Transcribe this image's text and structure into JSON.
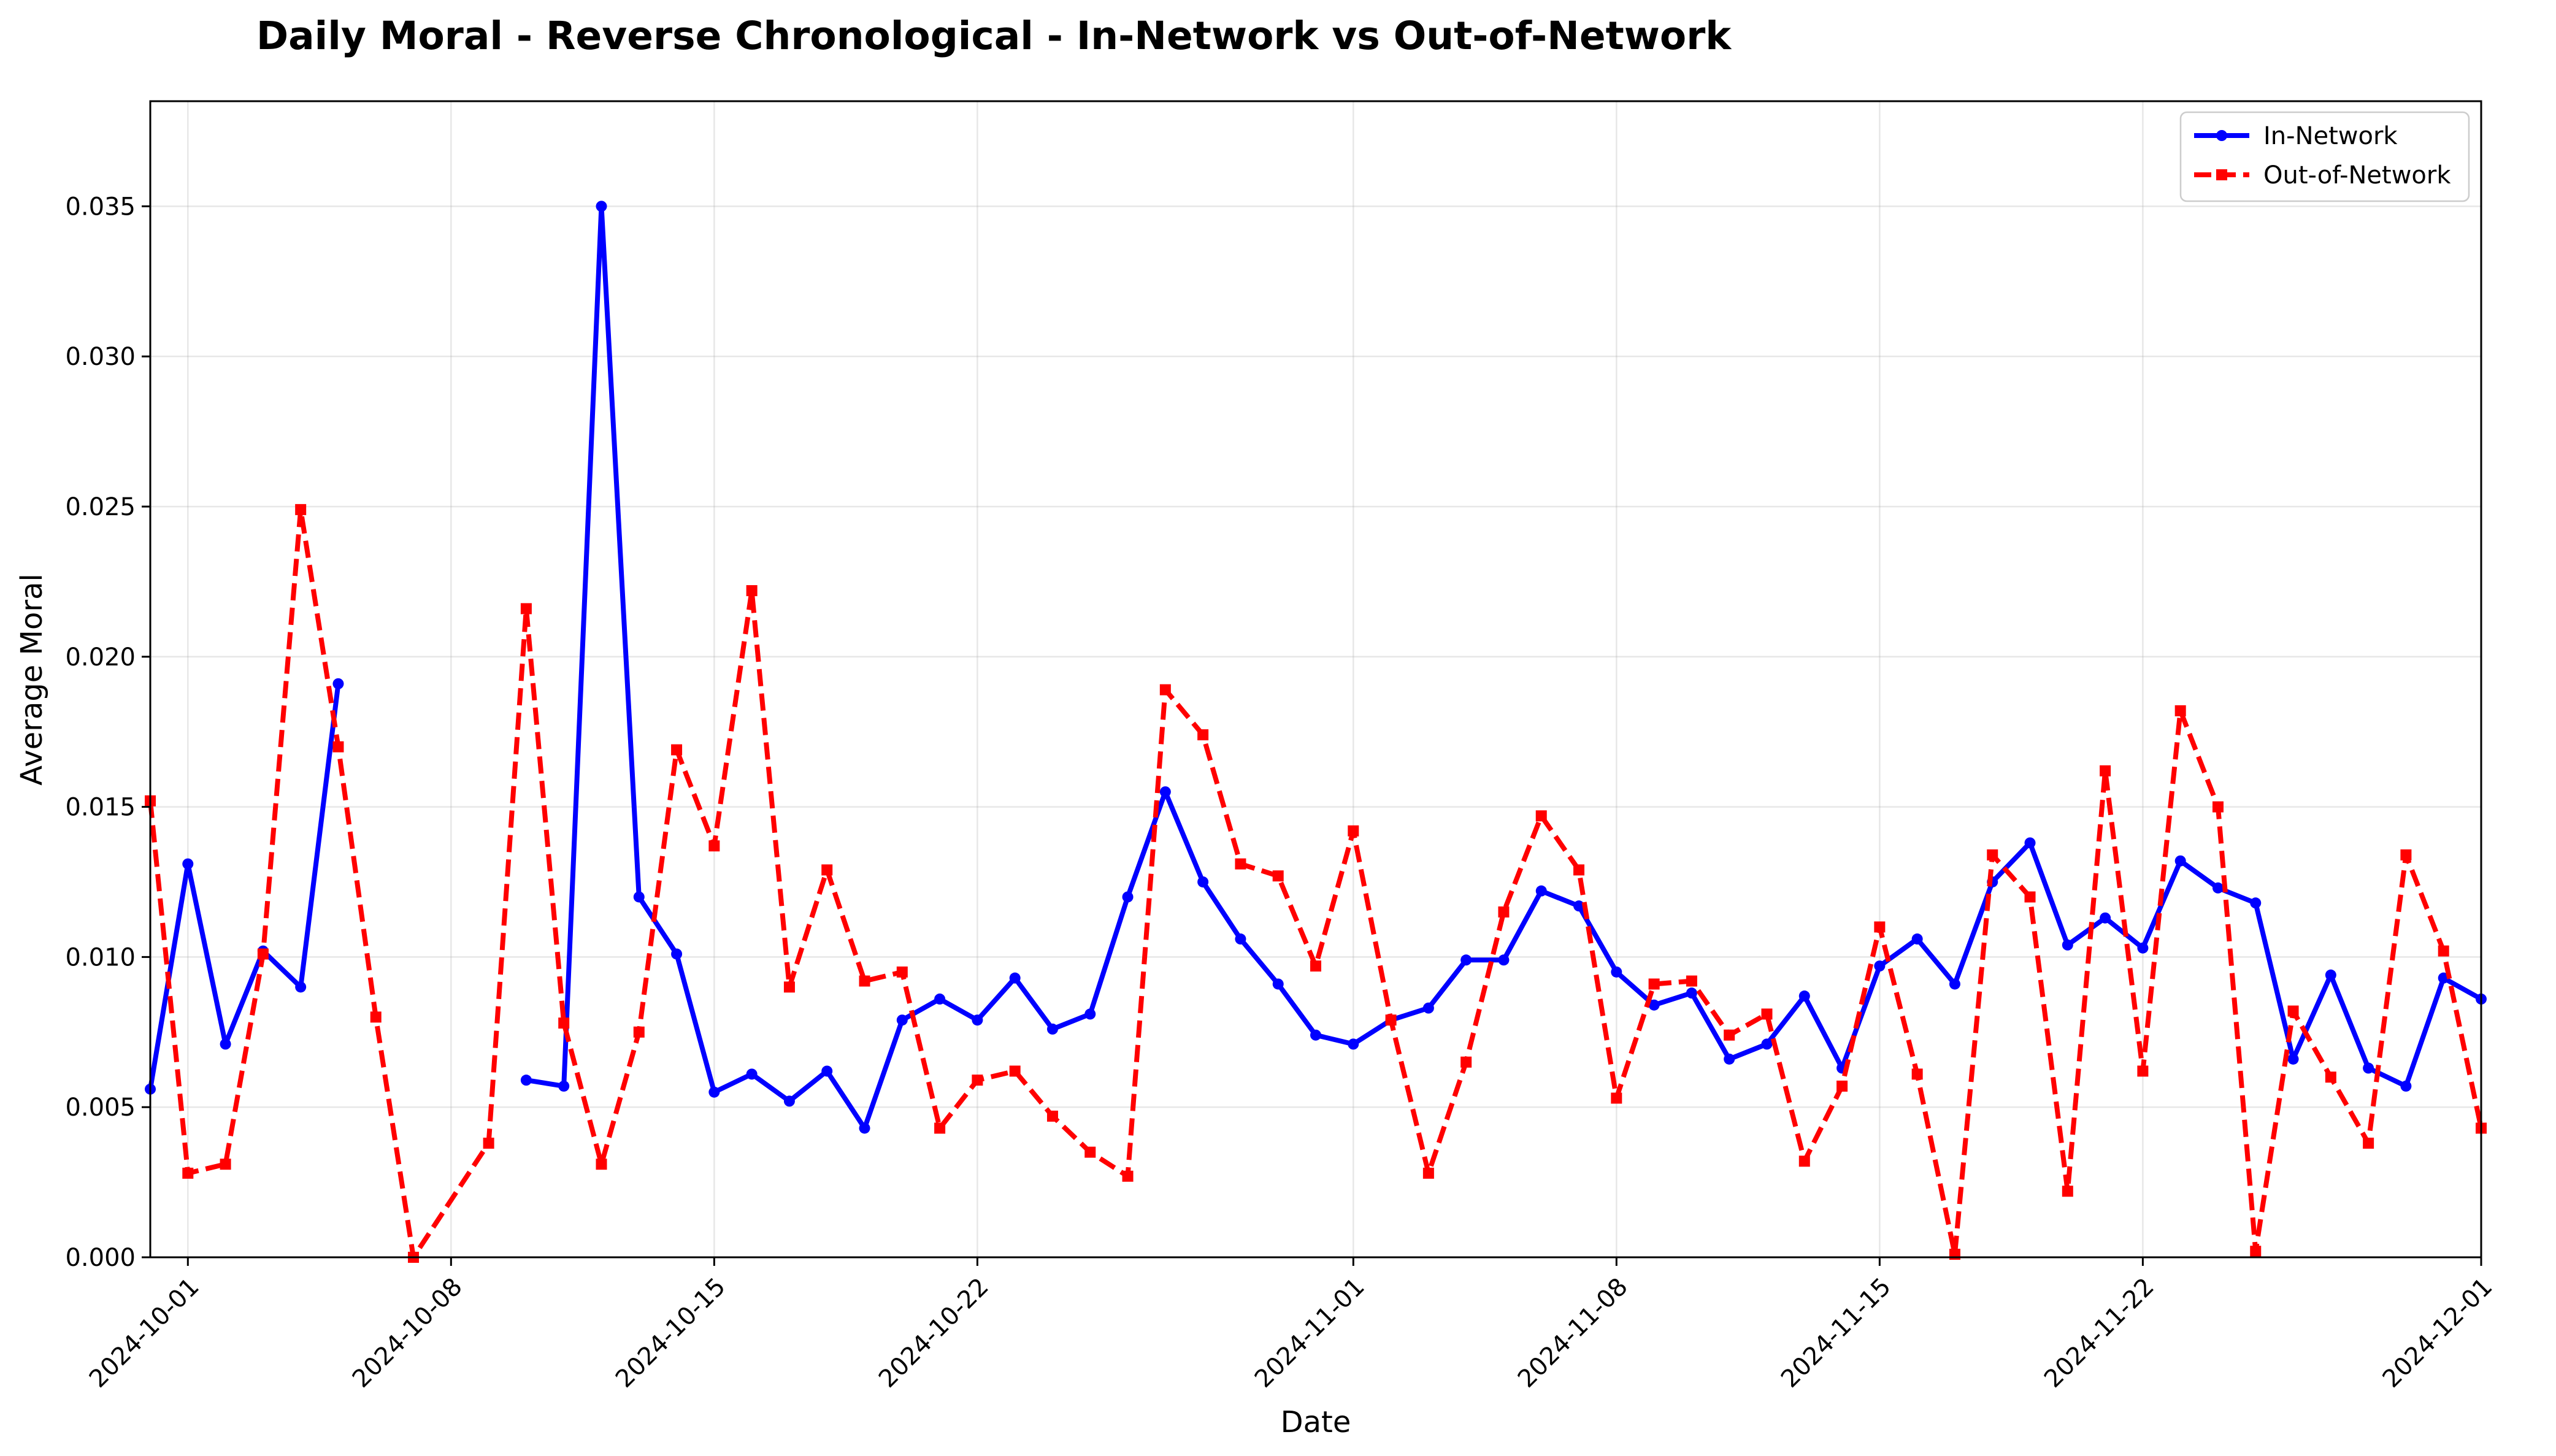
{
  "chart_data": {
    "type": "line",
    "title": "Daily Moral - Reverse Chronological - In-Network vs Out-of-Network",
    "xlabel": "Date",
    "ylabel": "Average Moral",
    "xlim": [
      "2024-09-30",
      "2024-12-01"
    ],
    "ylim": [
      0,
      0.0385
    ],
    "x_ticks": [
      "2024-10-01",
      "2024-10-08",
      "2024-10-15",
      "2024-10-22",
      "2024-11-01",
      "2024-11-08",
      "2024-11-15",
      "2024-11-22",
      "2024-12-01"
    ],
    "y_ticks": [
      "0.000",
      "0.005",
      "0.010",
      "0.015",
      "0.020",
      "0.025",
      "0.030",
      "0.035"
    ],
    "grid": true,
    "legend_position": "top-right",
    "series": [
      {
        "name": "In-Network",
        "color": "#0000ff",
        "style": "solid",
        "marker": "circle",
        "points": [
          [
            "2024-09-30",
            0.0056
          ],
          [
            "2024-10-01",
            0.0131
          ],
          [
            "2024-10-02",
            0.0071
          ],
          [
            "2024-10-03",
            0.0102
          ],
          [
            "2024-10-04",
            0.009
          ],
          [
            "2024-10-05",
            0.0191
          ],
          [
            "2024-10-06",
            null
          ],
          [
            "2024-10-07",
            null
          ],
          [
            "2024-10-08",
            null
          ],
          [
            "2024-10-09",
            null
          ],
          [
            "2024-10-10",
            0.0059
          ],
          [
            "2024-10-11",
            0.0057
          ],
          [
            "2024-10-12",
            0.035
          ],
          [
            "2024-10-13",
            0.012
          ],
          [
            "2024-10-14",
            0.0101
          ],
          [
            "2024-10-15",
            0.0055
          ],
          [
            "2024-10-16",
            0.0061
          ],
          [
            "2024-10-17",
            0.0052
          ],
          [
            "2024-10-18",
            0.0062
          ],
          [
            "2024-10-19",
            0.0043
          ],
          [
            "2024-10-20",
            0.0079
          ],
          [
            "2024-10-21",
            0.0086
          ],
          [
            "2024-10-22",
            0.0079
          ],
          [
            "2024-10-23",
            0.0093
          ],
          [
            "2024-10-24",
            0.0076
          ],
          [
            "2024-10-25",
            0.0081
          ],
          [
            "2024-10-26",
            0.012
          ],
          [
            "2024-10-27",
            0.0155
          ],
          [
            "2024-10-28",
            0.0125
          ],
          [
            "2024-10-29",
            0.0106
          ],
          [
            "2024-10-30",
            0.0091
          ],
          [
            "2024-10-31",
            0.0074
          ],
          [
            "2024-11-01",
            0.0071
          ],
          [
            "2024-11-02",
            0.0079
          ],
          [
            "2024-11-03",
            0.0083
          ],
          [
            "2024-11-04",
            0.0099
          ],
          [
            "2024-11-05",
            0.0099
          ],
          [
            "2024-11-06",
            0.0122
          ],
          [
            "2024-11-07",
            0.0117
          ],
          [
            "2024-11-08",
            0.0095
          ],
          [
            "2024-11-09",
            0.0084
          ],
          [
            "2024-11-10",
            0.0088
          ],
          [
            "2024-11-11",
            0.0066
          ],
          [
            "2024-11-12",
            0.0071
          ],
          [
            "2024-11-13",
            0.0087
          ],
          [
            "2024-11-14",
            0.0063
          ],
          [
            "2024-11-15",
            0.0097
          ],
          [
            "2024-11-16",
            0.0106
          ],
          [
            "2024-11-17",
            0.0091
          ],
          [
            "2024-11-18",
            0.0125
          ],
          [
            "2024-11-19",
            0.0138
          ],
          [
            "2024-11-20",
            0.0104
          ],
          [
            "2024-11-21",
            0.0113
          ],
          [
            "2024-11-22",
            0.0103
          ],
          [
            "2024-11-23",
            0.0132
          ],
          [
            "2024-11-24",
            0.0123
          ],
          [
            "2024-11-25",
            0.0118
          ],
          [
            "2024-11-26",
            0.0066
          ],
          [
            "2024-11-27",
            0.0094
          ],
          [
            "2024-11-28",
            0.0063
          ],
          [
            "2024-11-29",
            0.0057
          ],
          [
            "2024-11-30",
            0.0093
          ],
          [
            "2024-12-01",
            0.0086
          ]
        ]
      },
      {
        "name": "Out-of-Network",
        "color": "#ff0000",
        "style": "dashed",
        "marker": "square",
        "points": [
          [
            "2024-09-30",
            0.0152
          ],
          [
            "2024-10-01",
            0.0028
          ],
          [
            "2024-10-02",
            0.0031
          ],
          [
            "2024-10-03",
            0.0101
          ],
          [
            "2024-10-04",
            0.0249
          ],
          [
            "2024-10-05",
            0.017
          ],
          [
            "2024-10-06",
            0.008
          ],
          [
            "2024-10-07",
            0.0
          ],
          [
            "2024-10-09",
            0.0038
          ],
          [
            "2024-10-10",
            0.0216
          ],
          [
            "2024-10-11",
            0.0078
          ],
          [
            "2024-10-12",
            0.0031
          ],
          [
            "2024-10-13",
            0.0075
          ],
          [
            "2024-10-14",
            0.0169
          ],
          [
            "2024-10-15",
            0.0137
          ],
          [
            "2024-10-16",
            0.0222
          ],
          [
            "2024-10-17",
            0.009
          ],
          [
            "2024-10-18",
            0.0129
          ],
          [
            "2024-10-19",
            0.0092
          ],
          [
            "2024-10-20",
            0.0095
          ],
          [
            "2024-10-21",
            0.0043
          ],
          [
            "2024-10-22",
            0.0059
          ],
          [
            "2024-10-23",
            0.0062
          ],
          [
            "2024-10-24",
            0.0047
          ],
          [
            "2024-10-25",
            0.0035
          ],
          [
            "2024-10-26",
            0.0027
          ],
          [
            "2024-10-27",
            0.0189
          ],
          [
            "2024-10-28",
            0.0174
          ],
          [
            "2024-10-29",
            0.0131
          ],
          [
            "2024-10-30",
            0.0127
          ],
          [
            "2024-10-31",
            0.0097
          ],
          [
            "2024-11-01",
            0.0142
          ],
          [
            "2024-11-02",
            0.0079
          ],
          [
            "2024-11-03",
            0.0028
          ],
          [
            "2024-11-04",
            0.0065
          ],
          [
            "2024-11-05",
            0.0115
          ],
          [
            "2024-11-06",
            0.0147
          ],
          [
            "2024-11-07",
            0.0129
          ],
          [
            "2024-11-08",
            0.0053
          ],
          [
            "2024-11-09",
            0.0091
          ],
          [
            "2024-11-10",
            0.0092
          ],
          [
            "2024-11-11",
            0.0074
          ],
          [
            "2024-11-12",
            0.0081
          ],
          [
            "2024-11-13",
            0.0032
          ],
          [
            "2024-11-14",
            0.0057
          ],
          [
            "2024-11-15",
            0.011
          ],
          [
            "2024-11-16",
            0.0061
          ],
          [
            "2024-11-17",
            0.0001
          ],
          [
            "2024-11-18",
            0.0134
          ],
          [
            "2024-11-19",
            0.012
          ],
          [
            "2024-11-20",
            0.0022
          ],
          [
            "2024-11-21",
            0.0162
          ],
          [
            "2024-11-22",
            0.0062
          ],
          [
            "2024-11-23",
            0.0182
          ],
          [
            "2024-11-24",
            0.015
          ],
          [
            "2024-11-25",
            0.0002
          ],
          [
            "2024-11-26",
            0.0082
          ],
          [
            "2024-11-27",
            0.006
          ],
          [
            "2024-11-28",
            0.0038
          ],
          [
            "2024-11-29",
            0.0134
          ],
          [
            "2024-11-30",
            0.0102
          ],
          [
            "2024-12-01",
            0.0043
          ]
        ]
      }
    ]
  }
}
